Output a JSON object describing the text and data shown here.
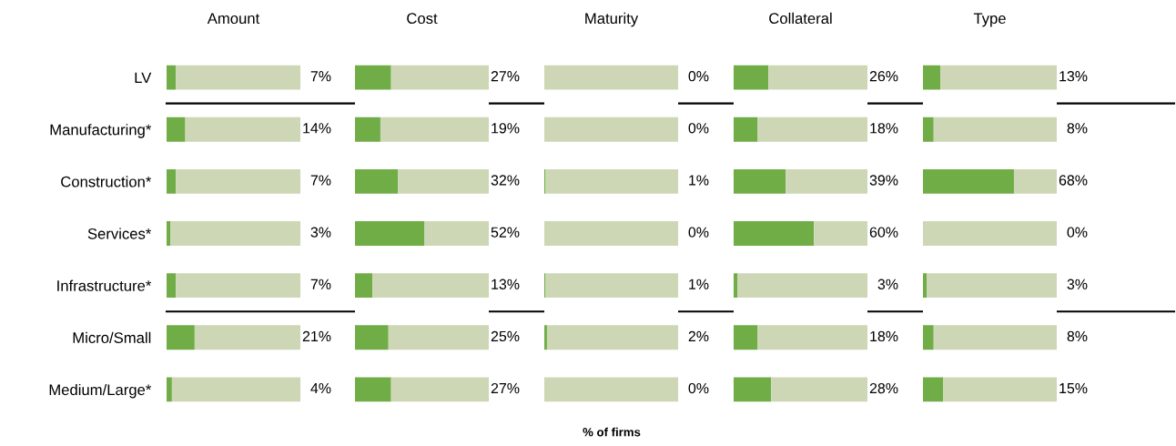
{
  "chart_data": [
    {
      "type": "bar",
      "orientation": "horizontal",
      "stacked": true,
      "title": "Amount",
      "categories": [
        "LV",
        "Manufacturing*",
        "Construction*",
        "Services*",
        "Infrastructure*",
        "Micro/Small",
        "Medium/Large*"
      ],
      "xlim": [
        0,
        100
      ],
      "tick_labels": "y",
      "grid": false,
      "series": [
        {
          "color": "#70ad47",
          "values": [
            7,
            14,
            7,
            3,
            7,
            21,
            4
          ],
          "value_labels": [
            "7%",
            "14%",
            "7%",
            "3%",
            "7%",
            "21%",
            "4%"
          ]
        },
        {
          "color": "#cdd7b6",
          "values": [
            93,
            86,
            93,
            97,
            93,
            79,
            96
          ]
        }
      ],
      "annotations": [
        "% of firms"
      ]
    },
    {
      "type": "bar",
      "orientation": "horizontal",
      "stacked": true,
      "title": "Cost",
      "categories": [
        null,
        null,
        null,
        null,
        null,
        null,
        null
      ],
      "xlim": [
        0,
        100
      ],
      "tick_labels": false,
      "grid": false,
      "legend": false,
      "series": [
        {
          "color": "#70ad47",
          "values": [
            27,
            19,
            32,
            52,
            13,
            25,
            27
          ],
          "value_labels": [
            "27%",
            "19%",
            "32%",
            "52%",
            "13%",
            "25%",
            "27%"
          ]
        },
        {
          "color": "#cdd7b6",
          "values": [
            73,
            81,
            68,
            48,
            87,
            75,
            73
          ]
        }
      ]
    },
    {
      "type": "bar",
      "orientation": "horizontal",
      "stacked": true,
      "title": "Maturity",
      "categories": [
        null,
        null,
        null,
        null,
        null,
        null,
        null
      ],
      "xlim": [
        0,
        100
      ],
      "tick_labels": false,
      "grid": false,
      "legend": false,
      "series": [
        {
          "color": "#70ad47",
          "values": [
            0,
            0,
            1,
            0,
            1,
            2,
            0
          ],
          "value_labels": [
            "0%",
            "0%",
            "1%",
            "0%",
            "1%",
            "2%",
            "0%"
          ]
        },
        {
          "color": "#cdd7b6",
          "values": [
            100,
            100,
            99,
            100,
            99,
            98,
            100
          ]
        }
      ]
    },
    {
      "type": "bar",
      "orientation": "horizontal",
      "stacked": true,
      "title": "Collateral",
      "categories": [
        null,
        null,
        null,
        null,
        null,
        null,
        null
      ],
      "xlim": [
        0,
        100
      ],
      "tick_labels": false,
      "grid": false,
      "legend": false,
      "series": [
        {
          "color": "#70ad47",
          "values": [
            26,
            18,
            39,
            60,
            3,
            18,
            28
          ],
          "value_labels": [
            "26%",
            "18%",
            "39%",
            "60%",
            "3%",
            "18%",
            "28%"
          ]
        },
        {
          "color": "#cdd7b6",
          "values": [
            74,
            82,
            61,
            40,
            97,
            82,
            72
          ]
        }
      ]
    },
    {
      "type": "bar",
      "orientation": "horizontal",
      "stacked": true,
      "title": "Type",
      "categories": [
        null,
        null,
        null,
        null,
        null,
        null,
        null
      ],
      "xlim": [
        0,
        100
      ],
      "tick_labels": false,
      "grid": false,
      "legend": false,
      "series": [
        {
          "color": "#70ad47",
          "values": [
            13,
            8,
            68,
            0,
            3,
            8,
            15
          ],
          "value_labels": [
            "13%",
            "8%",
            "68%",
            "0%",
            "3%",
            "8%",
            "15%"
          ]
        },
        {
          "color": "#cdd7b6",
          "values": [
            87,
            92,
            32,
            100,
            97,
            92,
            85
          ]
        }
      ]
    }
  ]
}
